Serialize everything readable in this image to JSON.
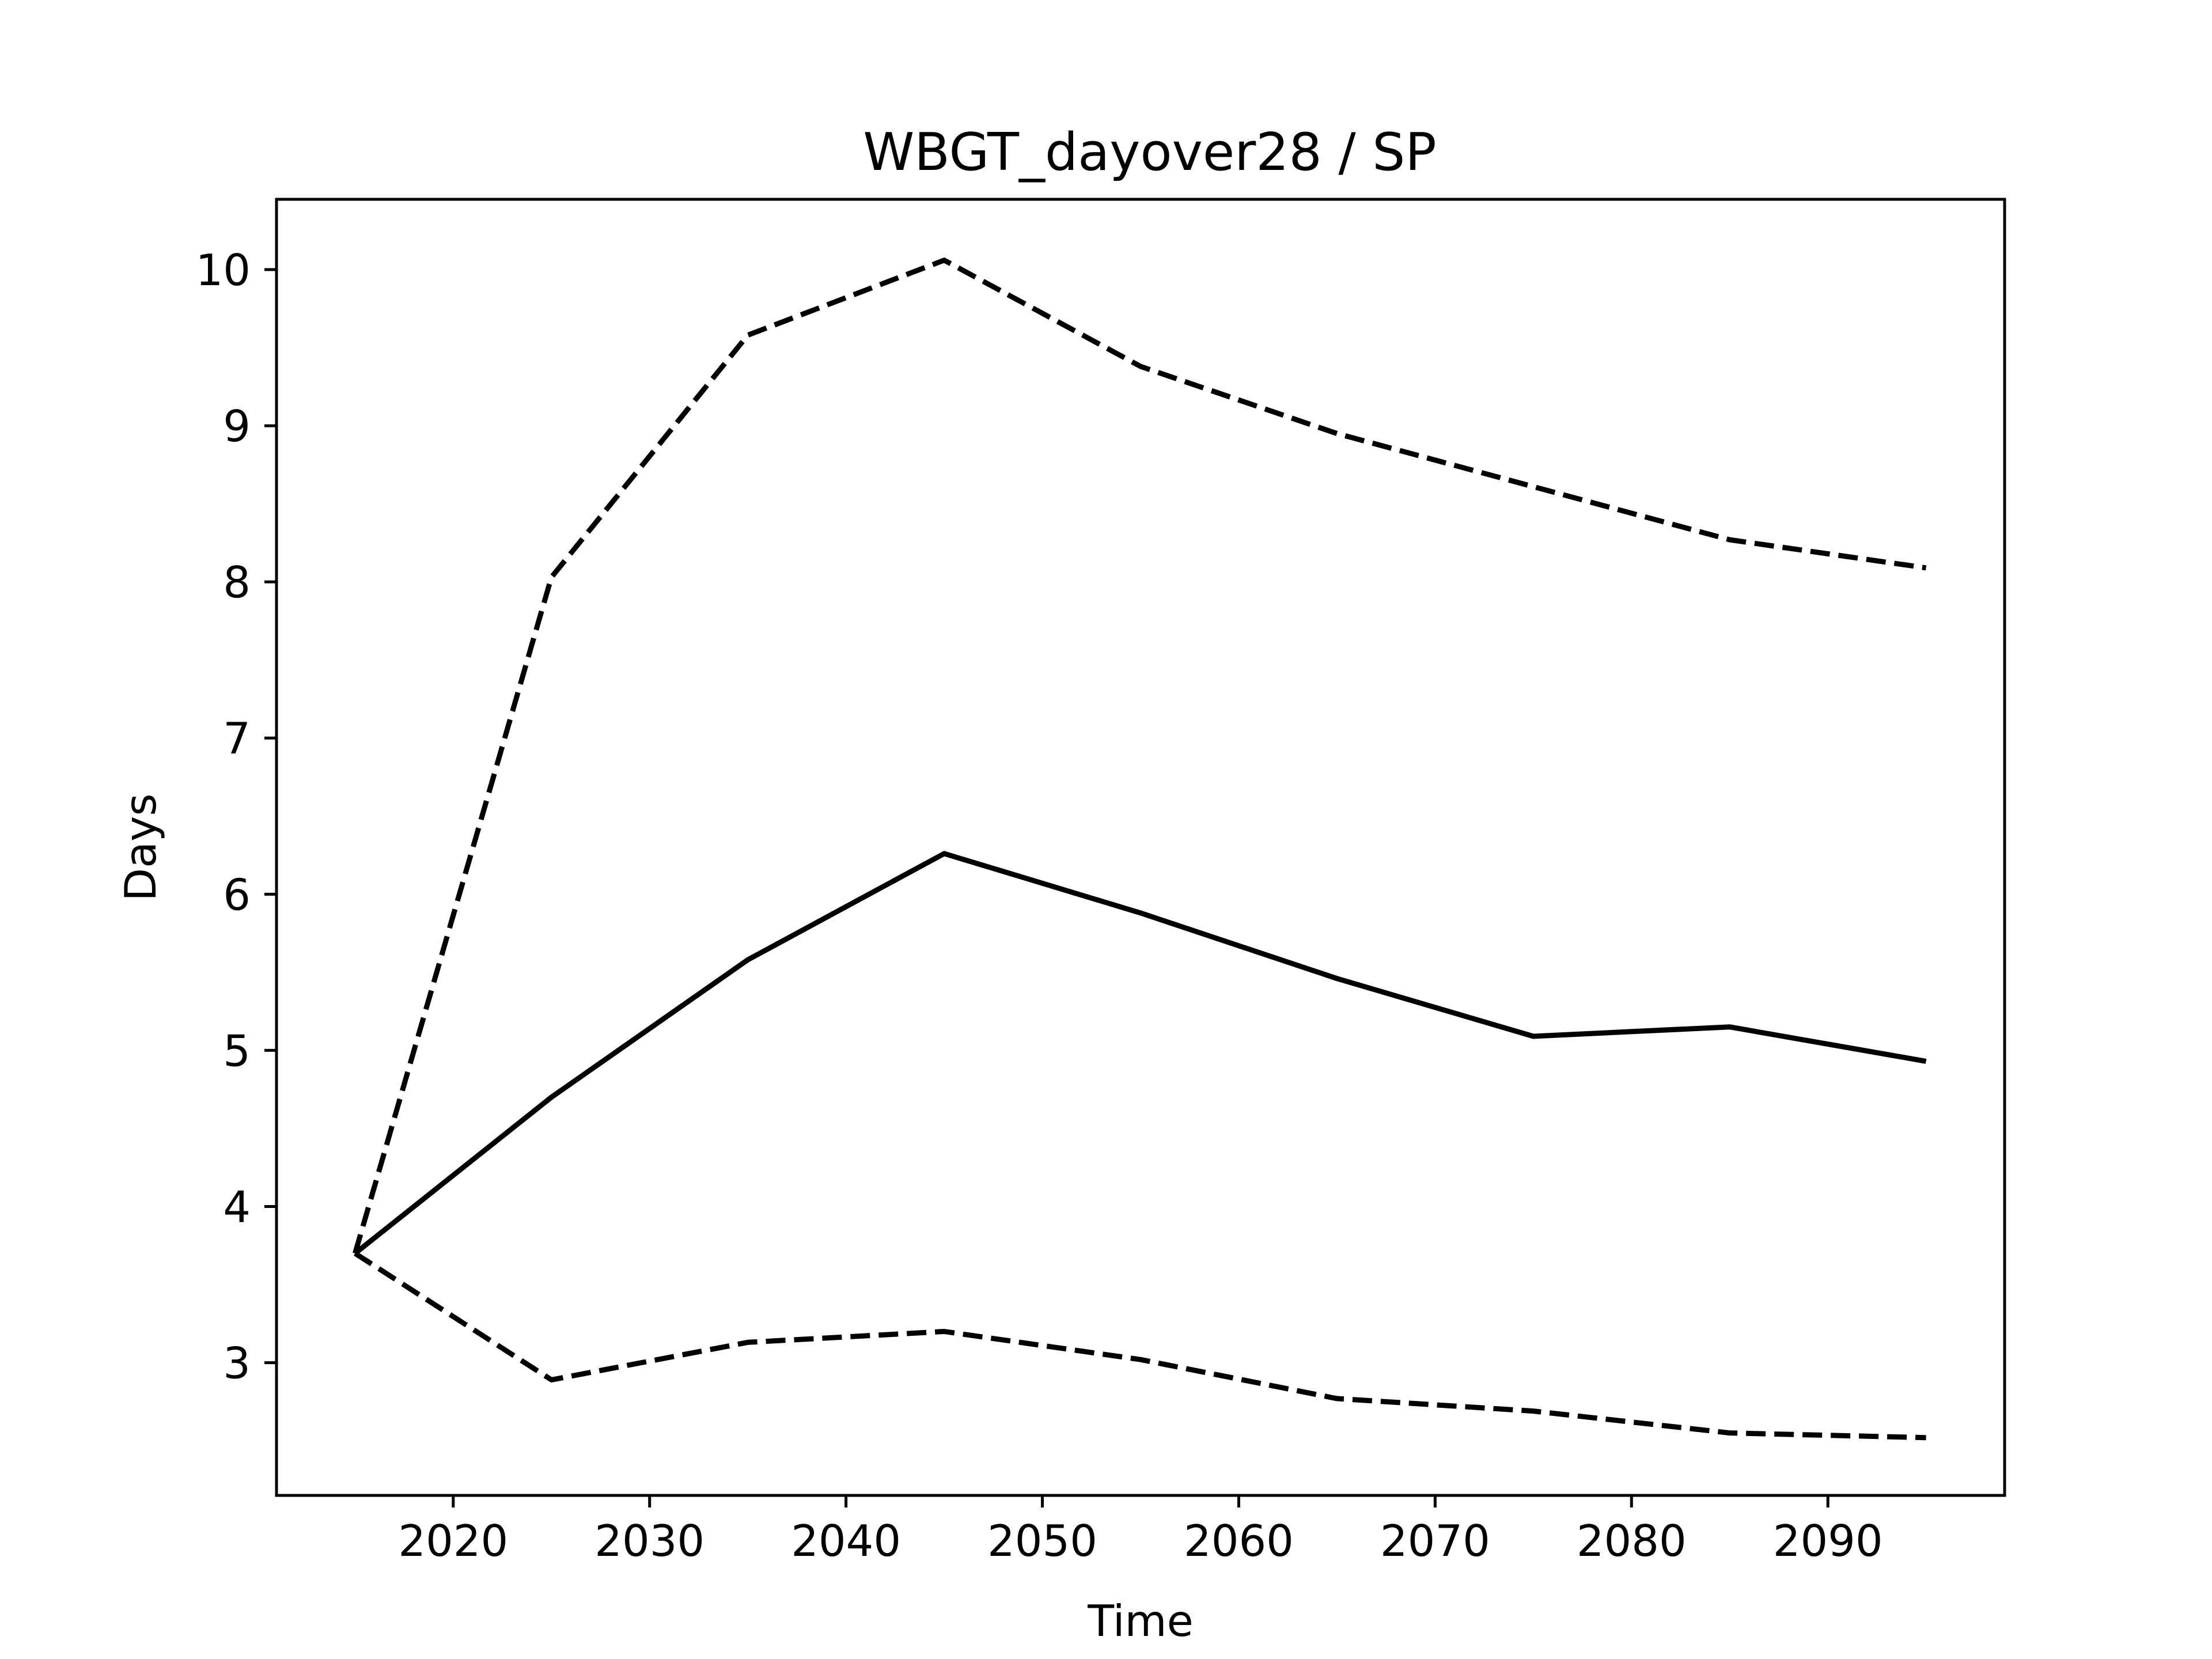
{
  "chart_data": {
    "type": "line",
    "title": "WBGT_dayover28 / SP",
    "xlabel": "Time",
    "ylabel": "Days",
    "x": [
      2015,
      2025,
      2035,
      2045,
      2055,
      2065,
      2075,
      2085,
      2095
    ],
    "xlim": [
      2011,
      2099
    ],
    "ylim": [
      2.15,
      10.45
    ],
    "xticks": [
      2020,
      2030,
      2040,
      2050,
      2060,
      2070,
      2080,
      2090
    ],
    "yticks": [
      3,
      4,
      5,
      6,
      7,
      8,
      9,
      10
    ],
    "grid": false,
    "legend": "none",
    "series": [
      {
        "style": "dashed",
        "color": "#000000",
        "values": [
          3.7,
          8.03,
          9.58,
          10.06,
          9.38,
          8.95,
          8.61,
          8.27,
          8.09
        ]
      },
      {
        "style": "solid",
        "color": "#000000",
        "values": [
          3.7,
          4.7,
          5.58,
          6.26,
          5.88,
          5.46,
          5.09,
          5.15,
          4.93
        ]
      },
      {
        "style": "dashed",
        "color": "#000000",
        "values": [
          3.7,
          2.89,
          3.13,
          3.2,
          3.02,
          2.77,
          2.69,
          2.55,
          2.52
        ]
      }
    ]
  }
}
